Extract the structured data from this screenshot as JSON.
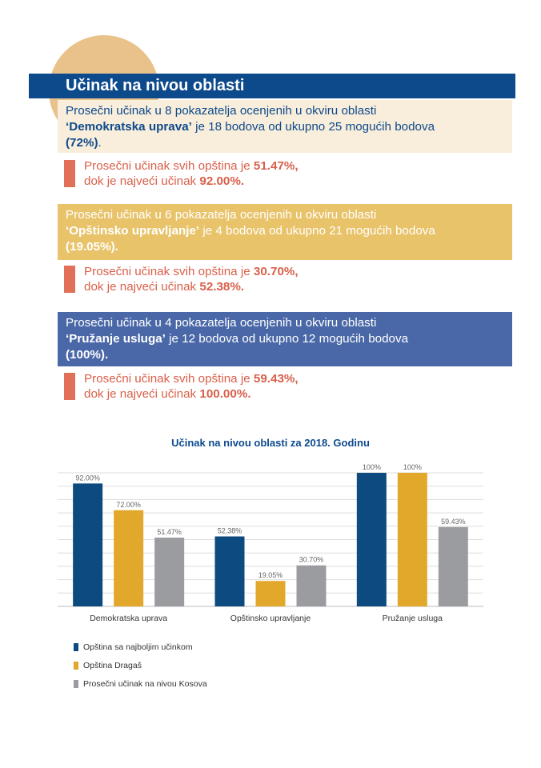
{
  "section": {
    "title": "Učinak na nivou oblasti"
  },
  "panels": [
    {
      "line1": "Prosečni učinak u 8 pokazatelja ocenjenih u okviru oblasti",
      "area": "‘Demokratska uprava’",
      "line2_rest": " je 18 bodova od ukupno 25 mogućih bodova",
      "pct": "(72%)",
      "end": "."
    },
    {
      "line1": "Prosečni učinak u 6 pokazatelja ocenjenih u okviru oblasti",
      "area": "‘Opštinsko upravljanje’",
      "line2_rest": " je 4 bodova od ukupno 21 mogućih bodova",
      "pct": "(19.05%).",
      "end": ""
    },
    {
      "line1": "Prosečni učinak u 4 pokazatelja ocenjenih u okviru oblasti",
      "area": " ‘Pružanje usluga’",
      "line2_rest": " je 12 bodova od ukupno 12 mogućih bodova",
      "pct": "(100%).",
      "end": ""
    }
  ],
  "stats": [
    {
      "avg_text": "Prosečni učinak svih opština je ",
      "avg": "51.47%,",
      "max_text": "dok je najveći učinak ",
      "max": "92.00%."
    },
    {
      "avg_text": "Prosečni učinak svih opština je ",
      "avg": "30.70%,",
      "max_text": "dok je najveći učinak ",
      "max": "52.38%."
    },
    {
      "avg_text": "Prosečni učinak svih opština je ",
      "avg": "59.43%,",
      "max_text": "dok je najveći učinak ",
      "max": "100.00%."
    }
  ],
  "chart_data": {
    "type": "bar",
    "title": "Učinak na nivou oblasti za 2018. Godinu",
    "categories": [
      "Demokratska uprava",
      "Opštinsko upravljanje",
      "Pružanje usluga"
    ],
    "ylim": [
      0,
      100
    ],
    "grid": true,
    "legend_position": "bottom-left",
    "series": [
      {
        "name": "Opština sa najboljim učinkom",
        "color": "#0d4a80",
        "values": [
          92.0,
          52.38,
          100
        ],
        "labels": [
          "92.00%",
          "52.38%",
          "100%"
        ]
      },
      {
        "name": "Opština Dragaš",
        "color": "#e2a82c",
        "values": [
          72.0,
          19.05,
          100
        ],
        "labels": [
          "72.00%",
          "19.05%",
          "100%"
        ]
      },
      {
        "name": "Prosečni učinak na nivou Kosova",
        "color": "#9a9ca0",
        "values": [
          51.47,
          30.7,
          59.43
        ],
        "labels": [
          "51.47%",
          "30.70%",
          "59.43%"
        ]
      }
    ]
  }
}
